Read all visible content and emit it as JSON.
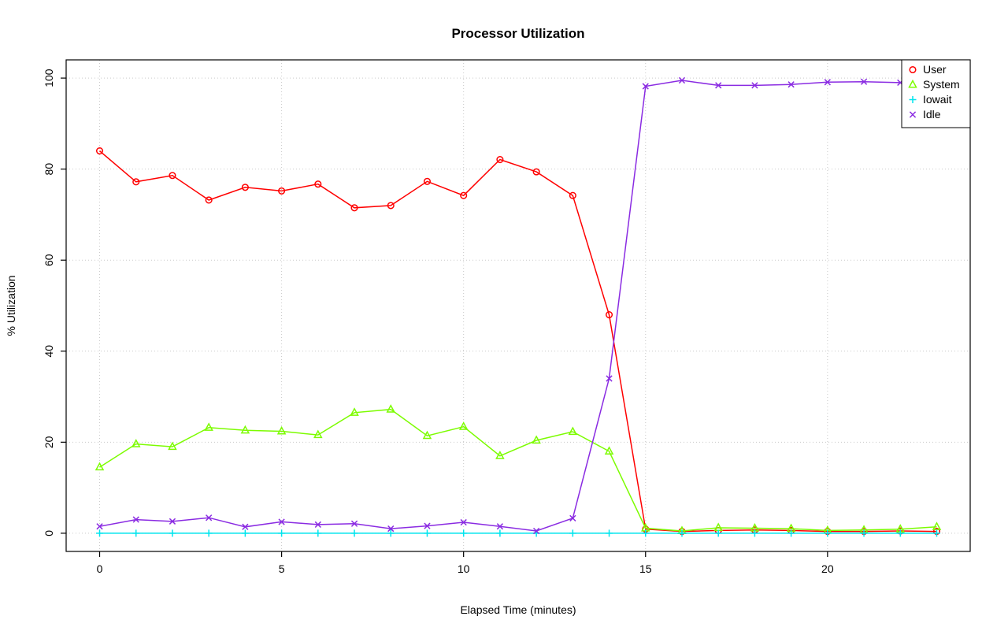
{
  "chart_data": {
    "type": "line",
    "title": "Processor Utilization",
    "xlabel": "Elapsed Time (minutes)",
    "ylabel": "% Utilization",
    "grid": true,
    "legend_position": "top-right",
    "xlim": [
      -0.92,
      23.92
    ],
    "ylim": [
      -4,
      104
    ],
    "xticks": [
      0,
      5,
      10,
      15,
      20
    ],
    "yticks": [
      0,
      20,
      40,
      60,
      80,
      100
    ],
    "x": [
      0,
      1,
      2,
      3,
      4,
      5,
      6,
      7,
      8,
      9,
      10,
      11,
      12,
      13,
      14,
      15,
      16,
      17,
      18,
      19,
      20,
      21,
      22,
      23
    ],
    "series": [
      {
        "name": "User",
        "marker": "circle",
        "color": "#FF0000",
        "values": [
          84,
          77.2,
          78.6,
          73.2,
          76,
          75.2,
          76.7,
          71.5,
          72,
          77.3,
          74.2,
          82.1,
          79.4,
          74.2,
          48,
          0.9,
          0.4,
          0.6,
          0.7,
          0.6,
          0.4,
          0.4,
          0.5,
          0.4
        ]
      },
      {
        "name": "System",
        "marker": "triangle",
        "color": "#7CFC00",
        "values": [
          14.5,
          19.6,
          19,
          23.2,
          22.6,
          22.4,
          21.6,
          26.5,
          27.2,
          21.4,
          23.4,
          17,
          20.4,
          22.3,
          18,
          1.1,
          0.5,
          1.2,
          1.1,
          1,
          0.6,
          0.7,
          0.9,
          1.4
        ]
      },
      {
        "name": "Iowait",
        "marker": "plus",
        "color": "#00E5EE",
        "values": [
          0,
          0,
          0,
          0,
          0,
          0,
          0,
          0,
          0,
          0,
          0,
          0,
          0,
          0,
          0,
          0,
          0,
          0,
          0,
          0,
          0,
          0,
          0,
          0
        ]
      },
      {
        "name": "Idle",
        "marker": "x",
        "color": "#8A2BE2",
        "values": [
          1.5,
          3,
          2.6,
          3.4,
          1.4,
          2.5,
          1.9,
          2.1,
          1,
          1.6,
          2.4,
          1.5,
          0.5,
          3.3,
          34,
          98.2,
          99.5,
          98.4,
          98.4,
          98.6,
          99.1,
          99.2,
          99,
          98
        ]
      }
    ]
  }
}
